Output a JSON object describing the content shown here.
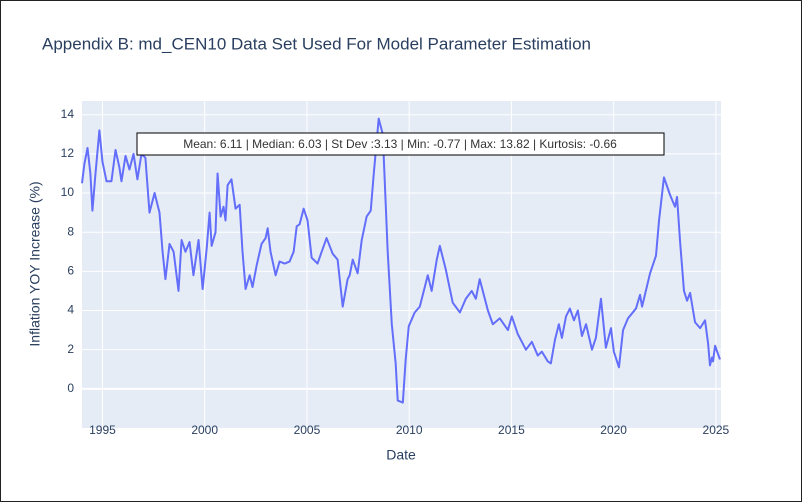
{
  "chart_data": {
    "type": "line",
    "title": "Appendix B: md_CEN10 Data Set Used For Model Parameter Estimation",
    "x_label": "Date",
    "y_label": "Inflation YOY Increase (%)",
    "annotation": "Mean: 6.11 | Median: 6.03 | St Dev :3.13 | Min: -0.77 | Max: 13.82 | Kurtosis: -0.66",
    "xlim": [
      1994.0,
      2025.25
    ],
    "ylim": [
      -2,
      14.7
    ],
    "xticks": [
      1995,
      2000,
      2005,
      2010,
      2015,
      2020,
      2025
    ],
    "yticks": [
      0,
      2,
      4,
      6,
      8,
      10,
      12,
      14
    ],
    "grid": true,
    "series": [
      {
        "color": "#636efa",
        "x": [
          1994.0,
          1994.12,
          1994.27,
          1994.41,
          1994.51,
          1994.66,
          1994.85,
          1995.0,
          1995.2,
          1995.44,
          1995.64,
          1995.83,
          1995.93,
          1996.13,
          1996.32,
          1996.52,
          1996.71,
          1996.91,
          1997.1,
          1997.3,
          1997.55,
          1997.79,
          1997.94,
          1998.08,
          1998.28,
          1998.48,
          1998.72,
          1998.87,
          1999.06,
          1999.26,
          1999.45,
          1999.7,
          1999.9,
          2000.1,
          2000.24,
          2000.34,
          2000.53,
          2000.63,
          2000.78,
          2000.92,
          2001.02,
          2001.12,
          2001.31,
          2001.51,
          2001.71,
          2001.85,
          2002.0,
          2002.2,
          2002.34,
          2002.54,
          2002.78,
          2002.98,
          2003.08,
          2003.22,
          2003.47,
          2003.66,
          2003.91,
          2004.15,
          2004.35,
          2004.5,
          2004.64,
          2004.84,
          2005.03,
          2005.23,
          2005.52,
          2005.72,
          2005.96,
          2006.26,
          2006.5,
          2006.75,
          2006.99,
          2007.09,
          2007.24,
          2007.48,
          2007.68,
          2007.92,
          2008.12,
          2008.27,
          2008.51,
          2008.71,
          2008.95,
          2009.15,
          2009.34,
          2009.44,
          2009.69,
          2009.83,
          2009.98,
          2010.27,
          2010.52,
          2010.91,
          2011.1,
          2011.35,
          2011.5,
          2011.79,
          2012.13,
          2012.48,
          2012.77,
          2013.06,
          2013.26,
          2013.45,
          2013.85,
          2014.09,
          2014.43,
          2014.83,
          2015.02,
          2015.31,
          2015.51,
          2015.71,
          2016.0,
          2016.29,
          2016.49,
          2016.78,
          2016.93,
          2017.13,
          2017.32,
          2017.47,
          2017.67,
          2017.86,
          2018.06,
          2018.25,
          2018.45,
          2018.65,
          2018.94,
          2019.13,
          2019.38,
          2019.62,
          2019.87,
          2020.01,
          2020.26,
          2020.46,
          2020.7,
          2021.09,
          2021.29,
          2021.39,
          2021.78,
          2022.07,
          2022.22,
          2022.46,
          2022.76,
          2023.0,
          2023.1,
          2023.25,
          2023.44,
          2023.59,
          2023.74,
          2023.98,
          2024.23,
          2024.47,
          2024.62,
          2024.71,
          2024.81,
          2024.86,
          2024.96,
          2025.2
        ],
        "values": [
          10.5,
          11.5,
          12.3,
          11,
          9.1,
          11,
          13.2,
          11.6,
          10.6,
          10.6,
          12.2,
          11.3,
          10.6,
          11.9,
          11.2,
          12.0,
          10.7,
          12.0,
          11.8,
          9.0,
          10.0,
          9.0,
          7.0,
          5.6,
          7.4,
          7.0,
          5.0,
          7.6,
          7.0,
          7.5,
          5.8,
          7.6,
          5.1,
          7.2,
          9.0,
          7.3,
          8.0,
          11.0,
          8.8,
          9.3,
          8.6,
          10.4,
          10.7,
          9.2,
          9.4,
          7.0,
          5.1,
          5.8,
          5.2,
          6.3,
          7.4,
          7.7,
          8.2,
          7.0,
          5.8,
          6.5,
          6.4,
          6.5,
          7.0,
          8.3,
          8.4,
          9.2,
          8.6,
          6.7,
          6.4,
          7.0,
          7.7,
          6.9,
          6.6,
          4.2,
          5.6,
          5.8,
          6.6,
          5.9,
          7.6,
          8.8,
          9.1,
          11.0,
          13.8,
          13.0,
          7.0,
          3.3,
          1.3,
          -0.6,
          -0.7,
          1.5,
          3.2,
          3.9,
          4.2,
          5.8,
          5.0,
          6.6,
          7.3,
          6.1,
          4.4,
          3.9,
          4.6,
          5.0,
          4.6,
          5.6,
          4.0,
          3.3,
          3.6,
          3.0,
          3.7,
          2.8,
          2.4,
          2.0,
          2.4,
          1.7,
          1.9,
          1.4,
          1.3,
          2.5,
          3.3,
          2.6,
          3.7,
          4.1,
          3.5,
          4.0,
          2.7,
          3.3,
          2.0,
          2.6,
          4.6,
          2.1,
          3.1,
          1.9,
          1.1,
          3.0,
          3.6,
          4.1,
          4.8,
          4.2,
          5.9,
          6.8,
          8.6,
          10.8,
          9.9,
          9.3,
          9.8,
          7.5,
          5.0,
          4.5,
          4.9,
          3.4,
          3.1,
          3.5,
          2.3,
          1.2,
          1.6,
          1.4,
          2.2,
          1.5
        ]
      }
    ]
  }
}
